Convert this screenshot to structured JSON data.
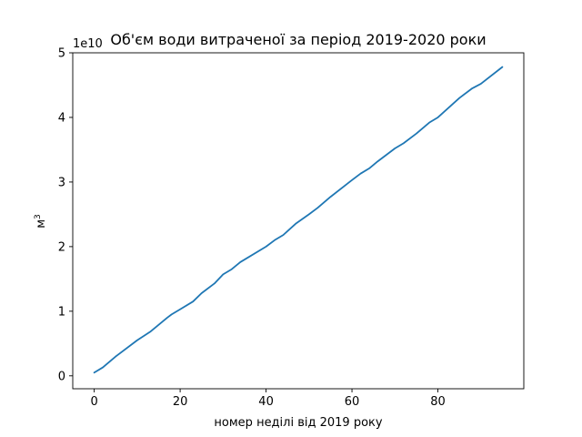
{
  "chart_data": {
    "type": "line",
    "title": "Об'єм води витраченої за період 2019-2020 роки",
    "xlabel": "номер неділі від 2019 року",
    "ylabel_base": "м",
    "ylabel_exp": "3",
    "y_multiplier": "1e10",
    "xlim": [
      -5,
      100
    ],
    "ylim": [
      -0.2,
      5
    ],
    "x_ticks": [
      0,
      20,
      40,
      60,
      80
    ],
    "y_ticks": [
      0,
      1,
      2,
      3,
      4,
      5
    ],
    "grid": false,
    "line_color": "#1f77b4",
    "series": [
      {
        "x": [
          0,
          2,
          5,
          10,
          13,
          17,
          18,
          20,
          23,
          25,
          28,
          30,
          32,
          34,
          40,
          42,
          44,
          47,
          50,
          52,
          55,
          60,
          62,
          64,
          66,
          70,
          72,
          75,
          78,
          80,
          85,
          88,
          90,
          95
        ],
        "values": [
          0.05,
          0.13,
          0.3,
          0.55,
          0.68,
          0.9,
          0.95,
          1.03,
          1.15,
          1.28,
          1.43,
          1.57,
          1.65,
          1.76,
          2.0,
          2.1,
          2.18,
          2.36,
          2.5,
          2.6,
          2.77,
          3.03,
          3.13,
          3.21,
          3.32,
          3.52,
          3.6,
          3.75,
          3.92,
          4.0,
          4.3,
          4.45,
          4.52,
          4.78
        ]
      }
    ]
  }
}
